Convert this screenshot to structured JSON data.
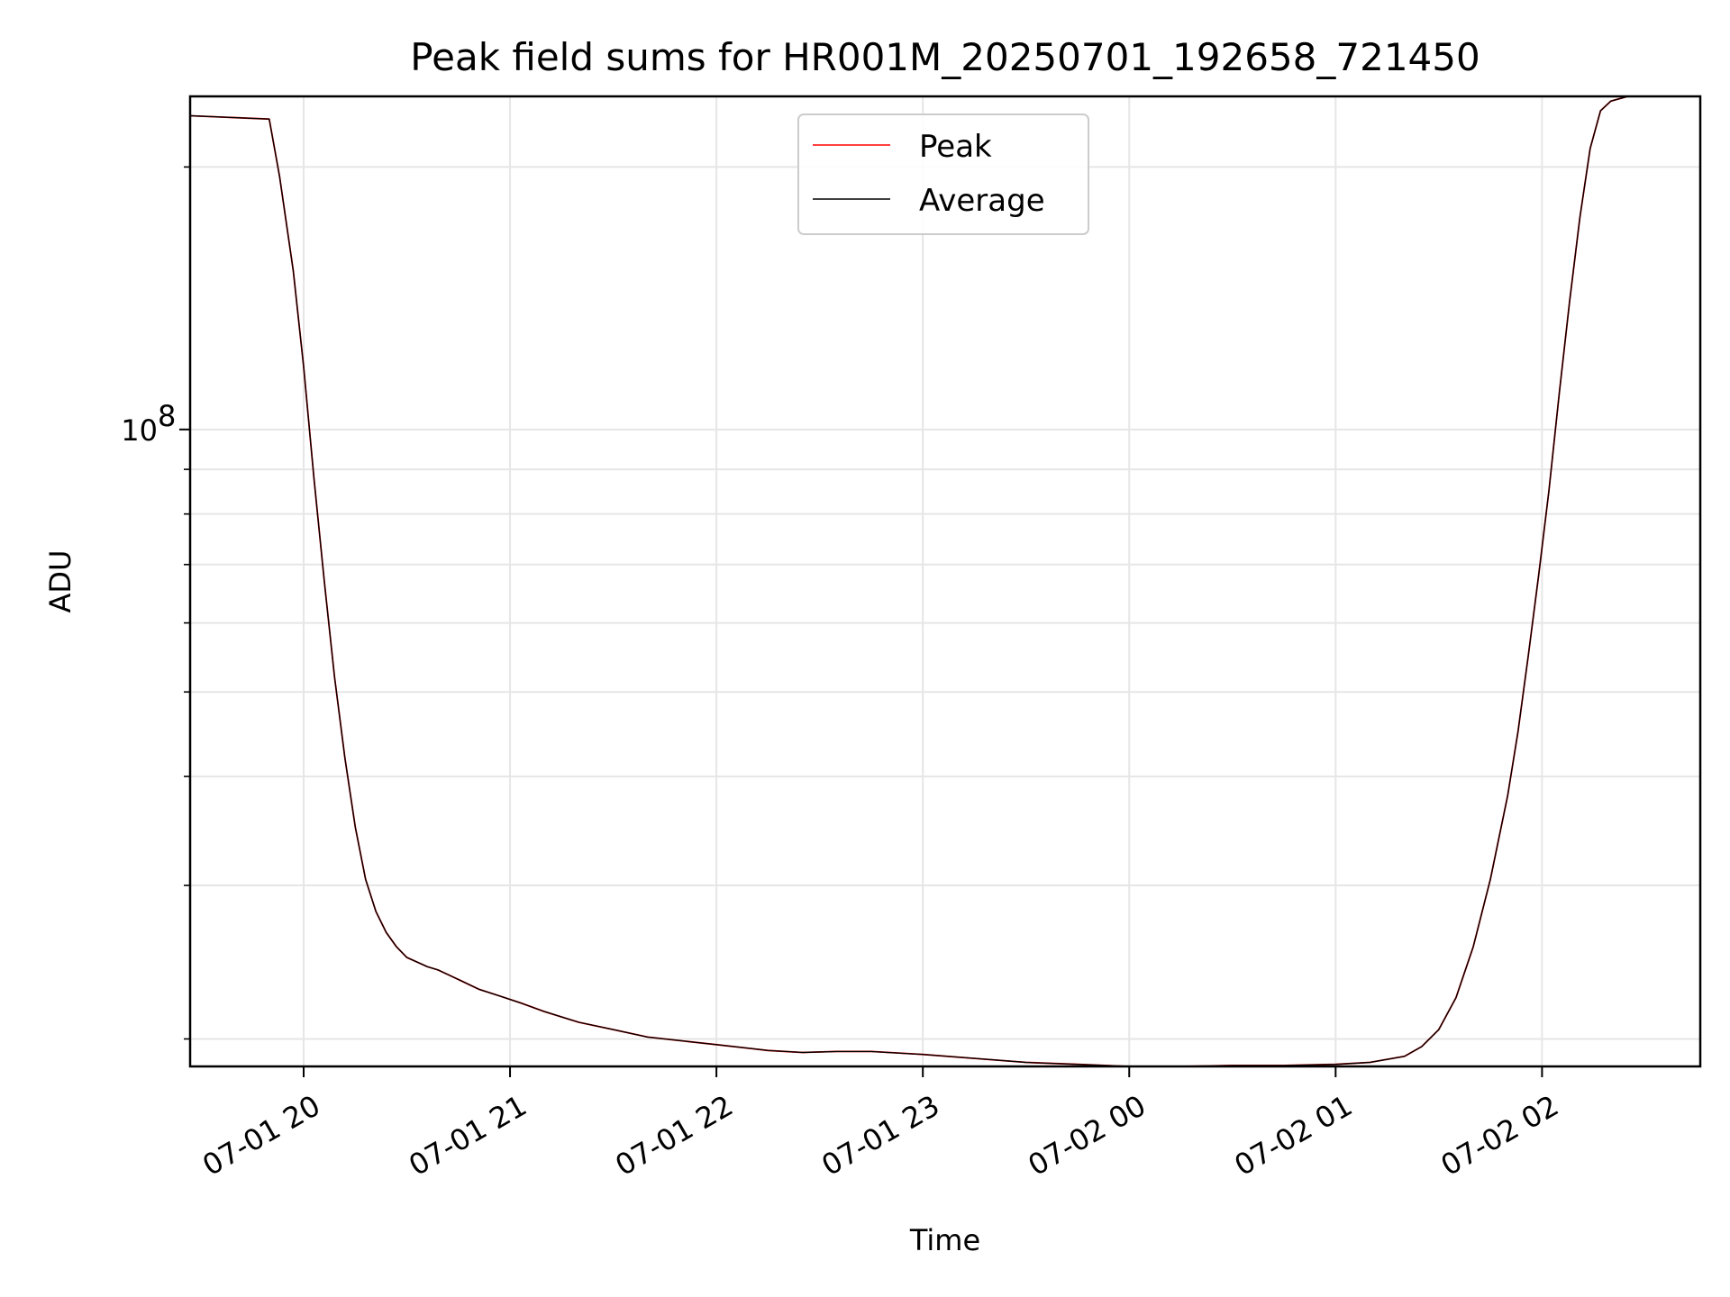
{
  "chart_data": {
    "type": "line",
    "title": "Peak field sums for HR001M_20250701_192658_721450",
    "xlabel": "Time",
    "ylabel": "ADU",
    "y_scale": "log",
    "x_axis_type": "datetime",
    "xlim": [
      "2025-07-01T19:27",
      "2025-07-02T02:46"
    ],
    "ylim": [
      18600000,
      241000000
    ],
    "grid": true,
    "legend_position": "upper-center",
    "x_tick_labels": [
      "07-01 20",
      "07-01 21",
      "07-01 22",
      "07-01 23",
      "07-02 00",
      "07-02 01",
      "07-02 02"
    ],
    "x_ticks": [
      "2025-07-01T20:00",
      "2025-07-01T21:00",
      "2025-07-01T22:00",
      "2025-07-01T23:00",
      "2025-07-02T00:00",
      "2025-07-02T01:00",
      "2025-07-02T02:00"
    ],
    "y_tick_label": "10",
    "y_tick_label_exponent": "8",
    "y_tick_value": 100000000,
    "y_minor_ticks": [
      20000000,
      30000000,
      40000000,
      50000000,
      60000000,
      70000000,
      80000000,
      90000000,
      200000000
    ],
    "x": [
      "2025-07-01T19:27",
      "2025-07-01T19:50",
      "2025-07-01T19:53",
      "2025-07-01T19:57",
      "2025-07-01T20:00",
      "2025-07-01T20:03",
      "2025-07-01T20:06",
      "2025-07-01T20:09",
      "2025-07-01T20:12",
      "2025-07-01T20:15",
      "2025-07-01T20:18",
      "2025-07-01T20:21",
      "2025-07-01T20:24",
      "2025-07-01T20:27",
      "2025-07-01T20:30",
      "2025-07-01T20:33",
      "2025-07-01T20:36",
      "2025-07-01T20:39",
      "2025-07-01T20:42",
      "2025-07-01T20:45",
      "2025-07-01T20:51",
      "2025-07-01T20:57",
      "2025-07-01T21:03",
      "2025-07-01T21:10",
      "2025-07-01T21:20",
      "2025-07-01T21:30",
      "2025-07-01T21:40",
      "2025-07-01T21:50",
      "2025-07-01T22:00",
      "2025-07-01T22:10",
      "2025-07-01T22:15",
      "2025-07-01T22:25",
      "2025-07-01T22:35",
      "2025-07-01T22:45",
      "2025-07-01T23:00",
      "2025-07-01T23:15",
      "2025-07-01T23:30",
      "2025-07-01T23:45",
      "2025-07-02T00:00",
      "2025-07-02T00:15",
      "2025-07-02T00:30",
      "2025-07-02T00:45",
      "2025-07-02T01:00",
      "2025-07-02T01:10",
      "2025-07-02T01:20",
      "2025-07-02T01:25",
      "2025-07-02T01:30",
      "2025-07-02T01:35",
      "2025-07-02T01:40",
      "2025-07-02T01:45",
      "2025-07-02T01:50",
      "2025-07-02T01:53",
      "2025-07-02T01:56",
      "2025-07-02T01:59",
      "2025-07-02T02:02",
      "2025-07-02T02:05",
      "2025-07-02T02:08",
      "2025-07-02T02:11",
      "2025-07-02T02:14",
      "2025-07-02T02:17",
      "2025-07-02T02:20",
      "2025-07-02T02:25",
      "2025-07-02T02:46"
    ],
    "series": [
      {
        "name": "Peak",
        "color": "#ff0000",
        "values": [
          229000000,
          227000000,
          195000000,
          152000000,
          118000000,
          88000000,
          67000000,
          52000000,
          42000000,
          35000000,
          30500000,
          28000000,
          26500000,
          25500000,
          24800000,
          24500000,
          24200000,
          24000000,
          23700000,
          23400000,
          22800000,
          22400000,
          22000000,
          21500000,
          20900000,
          20500000,
          20100000,
          19900000,
          19700000,
          19500000,
          19400000,
          19300000,
          19350000,
          19350000,
          19200000,
          19000000,
          18800000,
          18700000,
          18600000,
          18600000,
          18650000,
          18650000,
          18700000,
          18800000,
          19100000,
          19600000,
          20500000,
          22300000,
          25500000,
          30500000,
          38000000,
          45000000,
          55000000,
          68000000,
          85000000,
          110000000,
          140000000,
          175000000,
          210000000,
          232000000,
          238000000,
          241000000,
          241000000
        ]
      },
      {
        "name": "Average",
        "color": "#000000",
        "values": [
          229000000,
          227000000,
          195000000,
          152000000,
          118000000,
          88000000,
          67000000,
          52000000,
          42000000,
          35000000,
          30500000,
          28000000,
          26500000,
          25500000,
          24800000,
          24500000,
          24200000,
          24000000,
          23700000,
          23400000,
          22800000,
          22400000,
          22000000,
          21500000,
          20900000,
          20500000,
          20100000,
          19900000,
          19700000,
          19500000,
          19400000,
          19300000,
          19350000,
          19350000,
          19200000,
          19000000,
          18800000,
          18700000,
          18600000,
          18600000,
          18650000,
          18650000,
          18700000,
          18800000,
          19100000,
          19600000,
          20500000,
          22300000,
          25500000,
          30500000,
          38000000,
          45000000,
          55000000,
          68000000,
          85000000,
          110000000,
          140000000,
          175000000,
          210000000,
          232000000,
          238000000,
          241000000,
          241000000
        ]
      }
    ]
  }
}
